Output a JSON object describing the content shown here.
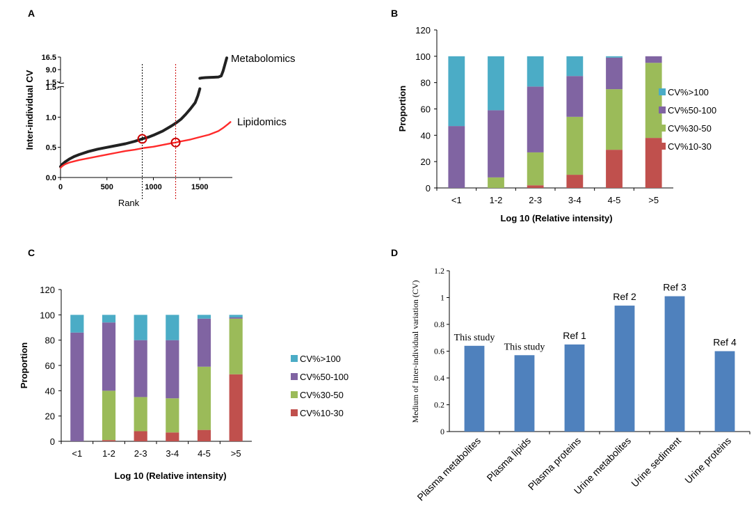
{
  "chart_data": [
    {
      "panel": "A",
      "type": "line",
      "xlabel": "Rank",
      "ylabel": "Inter-individual CV",
      "xticks": [
        0,
        500,
        1000,
        1500
      ],
      "yticks_lower": [
        "0.0",
        "0.5",
        "1.0",
        "1.5"
      ],
      "yticks_upper": [
        "1.5",
        "9.0",
        "16.5"
      ],
      "xlim": [
        0,
        1850
      ],
      "ylim_lower": [
        0,
        1.5
      ],
      "ylim_upper": [
        1.5,
        16.5
      ],
      "series": [
        {
          "name": "Metabolomics",
          "color": "#222222",
          "x": [
            0,
            20,
            50,
            100,
            150,
            200,
            300,
            400,
            500,
            600,
            700,
            800,
            880,
            950,
            1000,
            1100,
            1200,
            1250,
            1300,
            1350,
            1400,
            1450,
            1480,
            1500
          ],
          "y": [
            0.18,
            0.22,
            0.26,
            0.31,
            0.35,
            0.38,
            0.43,
            0.47,
            0.5,
            0.53,
            0.56,
            0.6,
            0.64,
            0.67,
            0.7,
            0.77,
            0.86,
            0.91,
            0.97,
            1.05,
            1.14,
            1.24,
            1.36,
            1.47
          ]
        },
        {
          "name": "Metabolomics (upper range)",
          "color": "#222222",
          "x": [
            1500,
            1520,
            1560,
            1600,
            1650,
            1700,
            1730,
            1750,
            1770,
            1790
          ],
          "y": [
            3.8,
            4.0,
            4.2,
            4.3,
            4.4,
            4.6,
            5.2,
            8.0,
            12.0,
            16.0
          ]
        },
        {
          "name": "Lipidomics",
          "color": "#ff2a2a",
          "x": [
            0,
            20,
            50,
            100,
            200,
            300,
            400,
            500,
            600,
            700,
            800,
            900,
            1000,
            1100,
            1200,
            1240,
            1300,
            1400,
            1500,
            1600,
            1700,
            1750,
            1800,
            1830
          ],
          "y": [
            0.16,
            0.19,
            0.22,
            0.25,
            0.29,
            0.32,
            0.35,
            0.38,
            0.41,
            0.44,
            0.46,
            0.49,
            0.51,
            0.54,
            0.57,
            0.58,
            0.6,
            0.63,
            0.67,
            0.71,
            0.77,
            0.82,
            0.88,
            0.92
          ]
        }
      ],
      "markers": [
        {
          "series": "Metabolomics",
          "x": 880,
          "y": 0.64
        },
        {
          "series": "Lipidomics",
          "x": 1240,
          "y": 0.58
        }
      ],
      "vlines": [
        {
          "x": 880,
          "color": "#000000"
        },
        {
          "x": 1240,
          "color": "#cc0000"
        }
      ],
      "annotations": [
        "Metabolomics",
        "Lipidomics"
      ]
    },
    {
      "panel": "B",
      "type": "bar",
      "stacked": true,
      "ylabel": "Proportion",
      "xlabel": "Log 10 (Relative intensity)",
      "categories": [
        "<1",
        "1-2",
        "2-3",
        "3-4",
        "4-5",
        ">5"
      ],
      "ylim": [
        0,
        120
      ],
      "yticks": [
        "0",
        "20",
        "40",
        "60",
        "80",
        "100",
        "120"
      ],
      "series": [
        {
          "name": "CV%10-30",
          "color": "#c0504d",
          "values": [
            0,
            0,
            2,
            10,
            29,
            38
          ]
        },
        {
          "name": "CV%30-50",
          "color": "#9bbb59",
          "values": [
            0,
            8,
            25,
            44,
            46,
            57
          ]
        },
        {
          "name": "CV%50-100",
          "color": "#8064a2",
          "values": [
            47,
            51,
            50,
            31,
            24,
            5
          ]
        },
        {
          "name": "CV%>100",
          "color": "#4bacc6",
          "values": [
            53,
            41,
            23,
            15,
            1,
            0
          ]
        }
      ],
      "legend_order": [
        "CV%>100",
        "CV%50-100",
        "CV%30-50",
        "CV%10-30"
      ]
    },
    {
      "panel": "C",
      "type": "bar",
      "stacked": true,
      "ylabel": "Proportion",
      "xlabel": "Log 10 (Relative intensity)",
      "categories": [
        "<1",
        "1-2",
        "2-3",
        "3-4",
        "4-5",
        ">5"
      ],
      "ylim": [
        0,
        120
      ],
      "yticks": [
        "0",
        "20",
        "40",
        "60",
        "80",
        "100",
        "120"
      ],
      "series": [
        {
          "name": "CV%10-30",
          "color": "#c0504d",
          "values": [
            0,
            1,
            8,
            7,
            9,
            53
          ]
        },
        {
          "name": "CV%30-50",
          "color": "#9bbb59",
          "values": [
            0,
            39,
            27,
            27,
            50,
            44
          ]
        },
        {
          "name": "CV%50-100",
          "color": "#8064a2",
          "values": [
            86,
            54,
            45,
            46,
            38,
            1
          ]
        },
        {
          "name": "CV%>100",
          "color": "#4bacc6",
          "values": [
            14,
            6,
            20,
            20,
            3,
            2
          ]
        }
      ],
      "legend_order": [
        "CV%>100",
        "CV%50-100",
        "CV%30-50",
        "CV%10-30"
      ]
    },
    {
      "panel": "D",
      "type": "bar",
      "ylabel": "Medium of Inter-individual variation (CV)",
      "categories": [
        "Plasma metabolites",
        "Plasma lipids",
        "Plasma proteins",
        "Urine metabolites",
        "Urine sediment",
        "Urine proteins"
      ],
      "values": [
        0.64,
        0.57,
        0.65,
        0.94,
        1.01,
        0.6
      ],
      "labels": [
        "This study",
        "This study",
        "Ref 1",
        "Ref 2",
        "Ref 3",
        "Ref 4"
      ],
      "color": "#4f81bd",
      "ylim": [
        0,
        1.2
      ],
      "yticks": [
        "0",
        "0.2",
        "0.4",
        "0.6",
        "0.8",
        "1",
        "1.2"
      ]
    }
  ],
  "panel_labels": [
    "A",
    "B",
    "C",
    "D"
  ]
}
